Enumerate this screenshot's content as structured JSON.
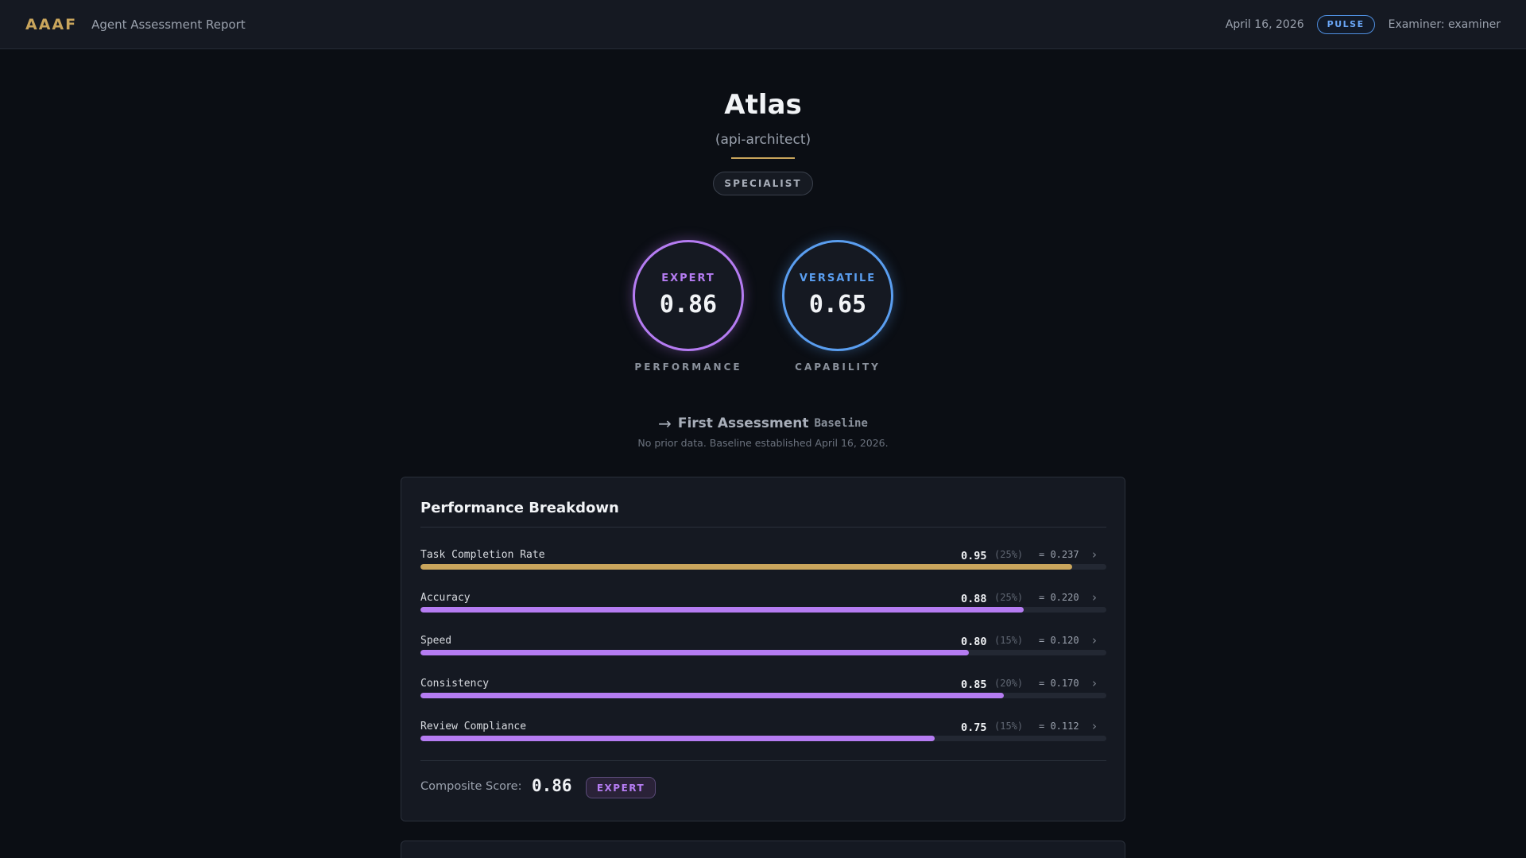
{
  "header": {
    "logo": "AAAF",
    "title": "Agent Assessment Report",
    "date": "April 16, 2026",
    "mode_badge": "PULSE",
    "examiner": "Examiner: examiner"
  },
  "agent": {
    "name": "Atlas",
    "role": "(api-architect)",
    "tier_badge": "SPECIALIST"
  },
  "gauges": [
    {
      "label": "EXPERT",
      "value": "0.86",
      "caption": "PERFORMANCE",
      "color": "#b57cf2"
    },
    {
      "label": "VERSATILE",
      "value": "0.65",
      "caption": "CAPABILITY",
      "color": "#5a9ef0"
    }
  ],
  "trend": {
    "arrow": "→",
    "title": "First Assessment",
    "tag": "Baseline",
    "note": "No prior data. Baseline established April 16, 2026."
  },
  "breakdown": {
    "title": "Performance Breakdown",
    "metrics": [
      {
        "name": "Task Completion Rate",
        "score": "0.95",
        "weight": "(25%)",
        "contribution": "= 0.237",
        "fraction": 0.95,
        "color": "#c9a55c"
      },
      {
        "name": "Accuracy",
        "score": "0.88",
        "weight": "(25%)",
        "contribution": "= 0.220",
        "fraction": 0.88,
        "color": "#b57cf2"
      },
      {
        "name": "Speed",
        "score": "0.80",
        "weight": "(15%)",
        "contribution": "= 0.120",
        "fraction": 0.8,
        "color": "#b57cf2"
      },
      {
        "name": "Consistency",
        "score": "0.85",
        "weight": "(20%)",
        "contribution": "= 0.170",
        "fraction": 0.85,
        "color": "#b57cf2"
      },
      {
        "name": "Review Compliance",
        "score": "0.75",
        "weight": "(15%)",
        "contribution": "= 0.112",
        "fraction": 0.75,
        "color": "#b57cf2"
      }
    ],
    "composite_label": "Composite Score:",
    "composite_value": "0.86",
    "composite_badge": "EXPERT"
  },
  "icons": {
    "chevron": "chevron-right-icon",
    "arrow": "arrow-right-icon"
  }
}
